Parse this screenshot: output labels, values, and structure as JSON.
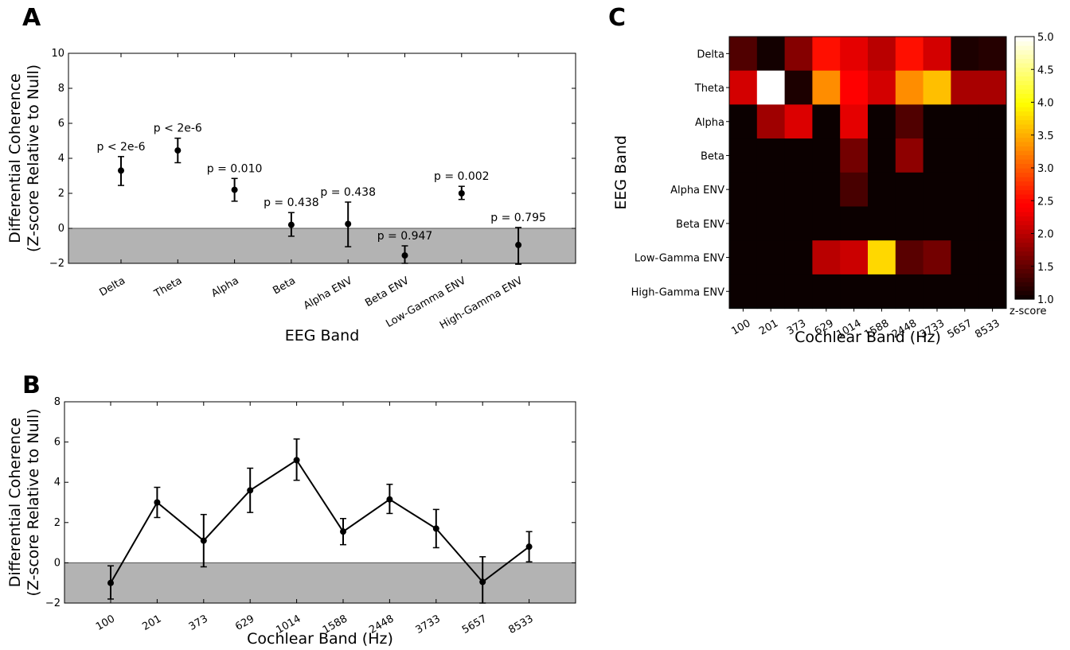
{
  "panels": {
    "a": "A",
    "b": "B",
    "c": "C"
  },
  "colors": {
    "shade": "#b3b3b3",
    "line": "#000000"
  },
  "chart_data": [
    {
      "id": "A",
      "type": "scatter",
      "categories": [
        "Delta",
        "Theta",
        "Alpha",
        "Beta",
        "Alpha ENV",
        "Beta ENV",
        "Low-Gamma ENV",
        "High-Gamma ENV"
      ],
      "values": [
        3.3,
        4.45,
        2.2,
        0.2,
        0.25,
        -1.55,
        2.0,
        -0.95
      ],
      "err_low": [
        2.45,
        3.75,
        1.55,
        -0.45,
        -1.05,
        -2.0,
        1.65,
        -2.05
      ],
      "err_high": [
        4.1,
        5.15,
        2.85,
        0.9,
        1.5,
        -1.0,
        2.4,
        0.05
      ],
      "annotations": [
        "p < 2e-6",
        "p < 2e-6",
        "p = 0.010",
        "p = 0.438",
        "p = 0.438",
        "p = 0.947",
        "p = 0.002",
        "p = 0.795"
      ],
      "xlabel": "EEG Band",
      "ylabel": [
        "Differential Coherence",
        "(Z-score Relative to Null)"
      ],
      "ylim": [
        -2,
        10
      ],
      "yticks": [
        -2,
        0,
        2,
        4,
        6,
        8,
        10
      ],
      "shaded_below_zero": true
    },
    {
      "id": "B",
      "type": "line",
      "categories": [
        "100",
        "201",
        "373",
        "629",
        "1014",
        "1588",
        "2448",
        "3733",
        "5657",
        "8533"
      ],
      "values": [
        -1.0,
        3.0,
        1.1,
        3.6,
        5.1,
        1.55,
        3.15,
        1.7,
        -0.95,
        0.8
      ],
      "err_low": [
        -1.8,
        2.25,
        -0.2,
        2.5,
        4.1,
        0.9,
        2.45,
        0.75,
        -2.0,
        0.05
      ],
      "err_high": [
        -0.15,
        3.75,
        2.4,
        4.7,
        6.15,
        2.2,
        3.9,
        2.65,
        0.3,
        1.55
      ],
      "xlabel": "Cochlear Band (Hz)",
      "ylabel": [
        "Differential Coherence",
        "(Z-score Relative to Null)"
      ],
      "ylim": [
        -2,
        8
      ],
      "yticks": [
        -2,
        0,
        2,
        4,
        6,
        8
      ],
      "shaded_below_zero": true
    },
    {
      "id": "C",
      "type": "heatmap",
      "rows": [
        "Delta",
        "Theta",
        "Alpha",
        "Beta",
        "Alpha ENV",
        "Beta ENV",
        "Low-Gamma ENV",
        "High-Gamma ENV"
      ],
      "columns": [
        "100",
        "201",
        "373",
        "629",
        "1014",
        "1588",
        "2448",
        "3733",
        "5657",
        "8533"
      ],
      "values": [
        [
          1.4,
          1.05,
          1.7,
          2.55,
          2.25,
          2.0,
          2.55,
          2.15,
          1.1,
          1.15
        ],
        [
          2.15,
          5.0,
          1.1,
          3.3,
          2.4,
          2.15,
          3.3,
          3.6,
          1.9,
          1.9
        ],
        [
          1.0,
          1.85,
          2.2,
          1.0,
          2.25,
          1.0,
          1.4,
          1.0,
          1.0,
          1.0
        ],
        [
          1.0,
          1.0,
          1.0,
          1.0,
          1.6,
          1.0,
          1.75,
          1.0,
          1.0,
          1.0
        ],
        [
          1.0,
          1.0,
          1.0,
          1.0,
          1.35,
          1.0,
          1.0,
          1.0,
          1.0,
          1.0
        ],
        [
          1.0,
          1.0,
          1.0,
          1.0,
          1.0,
          1.0,
          1.0,
          1.0,
          1.0,
          1.0
        ],
        [
          1.0,
          1.0,
          1.0,
          2.0,
          2.1,
          3.75,
          1.45,
          1.6,
          1.0,
          1.0
        ],
        [
          1.0,
          1.0,
          1.0,
          1.0,
          1.0,
          1.0,
          1.0,
          1.0,
          1.0,
          1.0
        ]
      ],
      "xlabel": "Cochlear Band (Hz)",
      "ylabel": "EEG Band",
      "colorbar": {
        "label": "z-score",
        "min": 1.0,
        "max": 5.0,
        "ticks": [
          "1.0",
          "1.5",
          "2.0",
          "2.5",
          "3.0",
          "3.5",
          "4.0",
          "4.5",
          "5.0"
        ],
        "colormap": "hot"
      }
    }
  ]
}
